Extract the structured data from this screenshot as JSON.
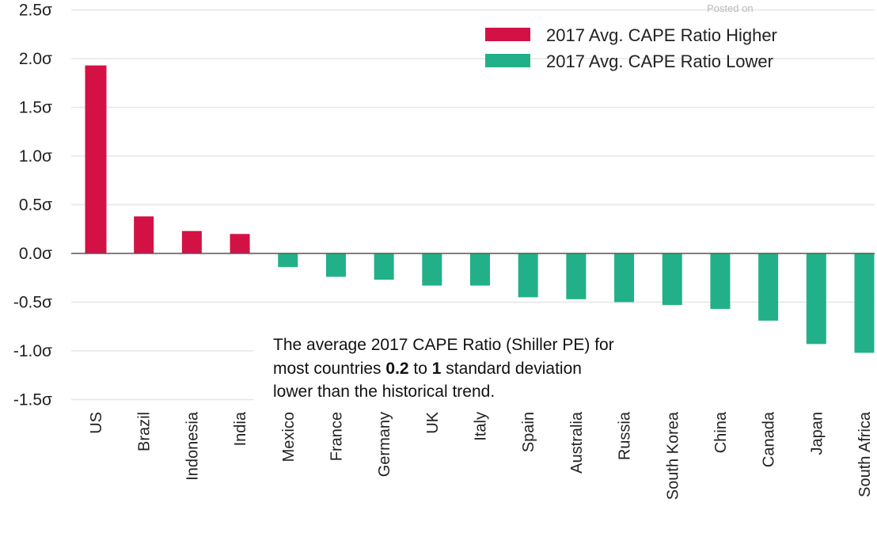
{
  "chart_data": {
    "type": "bar",
    "title": "",
    "xlabel": "",
    "ylabel": "",
    "ylim": [
      -1.5,
      2.5
    ],
    "yticks": [
      2.5,
      2.0,
      1.5,
      1.0,
      0.5,
      0.0,
      -0.5,
      -1.0,
      -1.5
    ],
    "ytick_labels": [
      "2.5σ",
      "2.0σ",
      "1.5σ",
      "1.0σ",
      "0.5σ",
      "0.0σ",
      "-0.5σ",
      "-1.0σ",
      "-1.5σ"
    ],
    "grid": true,
    "legend_position": "top-right",
    "categories": [
      "US",
      "Brazil",
      "Indonesia",
      "India",
      "Mexico",
      "France",
      "Germany",
      "UK",
      "Italy",
      "Spain",
      "Australia",
      "Russia",
      "South Korea",
      "China",
      "Canada",
      "Japan",
      "South Africa"
    ],
    "values": [
      1.93,
      0.38,
      0.23,
      0.2,
      -0.14,
      -0.24,
      -0.27,
      -0.33,
      -0.33,
      -0.45,
      -0.47,
      -0.5,
      -0.53,
      -0.57,
      -0.69,
      -0.93,
      -1.02
    ],
    "series": [
      {
        "name": "2017 Avg. CAPE Ratio Higher",
        "color": "#d31145"
      },
      {
        "name": "2017 Avg. CAPE Ratio Lower",
        "color": "#22b088"
      }
    ],
    "annotation": {
      "line1": "The average 2017 CAPE Ratio (Shiller PE) for",
      "line2_a": "most countries ",
      "line2_b": "0.2",
      "line2_c": " to ",
      "line2_d": "1",
      "line2_e": " standard deviation",
      "line3": "lower than the historical trend."
    },
    "watermark": "Posted on"
  }
}
